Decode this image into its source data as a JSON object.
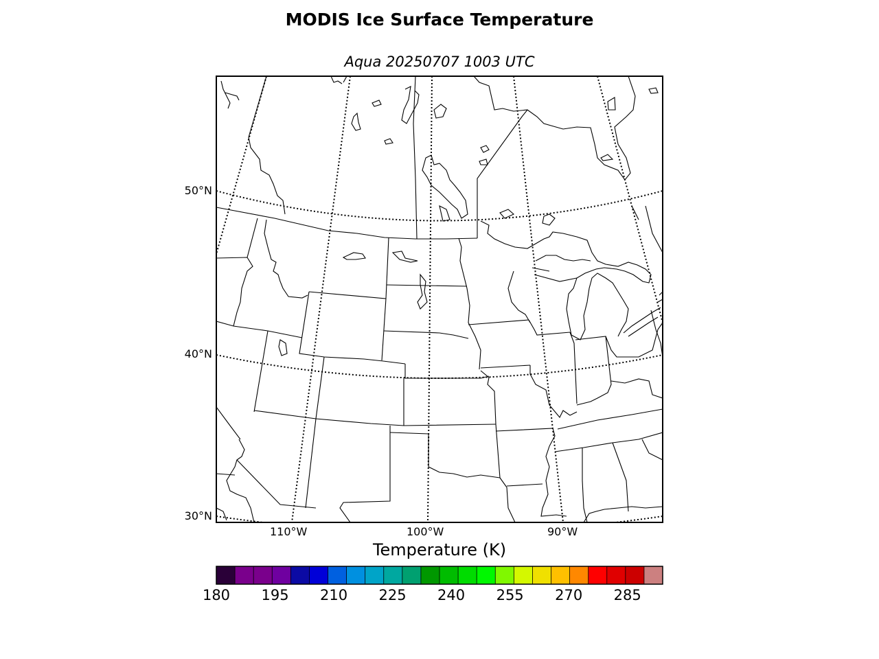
{
  "figure": {
    "title": "MODIS Ice Surface Temperature",
    "subtitle": "Aqua 20250707 1003 UTC"
  },
  "map": {
    "latitude_labels": [
      "50°N",
      "40°N",
      "30°N"
    ],
    "longitude_labels": [
      "110°W",
      "100°W",
      "90°W"
    ]
  },
  "colorbar": {
    "label": "Temperature (K)",
    "min": 180,
    "max": 294,
    "tick_labels": [
      "180",
      "195",
      "210",
      "225",
      "240",
      "255",
      "270",
      "285"
    ],
    "colors": [
      "#2a0038",
      "#7a008c",
      "#7a008c",
      "#6f00a0",
      "#0b0aa4",
      "#0000d8",
      "#0060e0",
      "#0090e0",
      "#00a4c8",
      "#00a8a0",
      "#00a070",
      "#009800",
      "#00bc00",
      "#00dc00",
      "#00f800",
      "#80f800",
      "#d4f800",
      "#f0e000",
      "#ffc000",
      "#ff8800",
      "#ff0000",
      "#e00000",
      "#cc0000",
      "#cc8080"
    ]
  }
}
